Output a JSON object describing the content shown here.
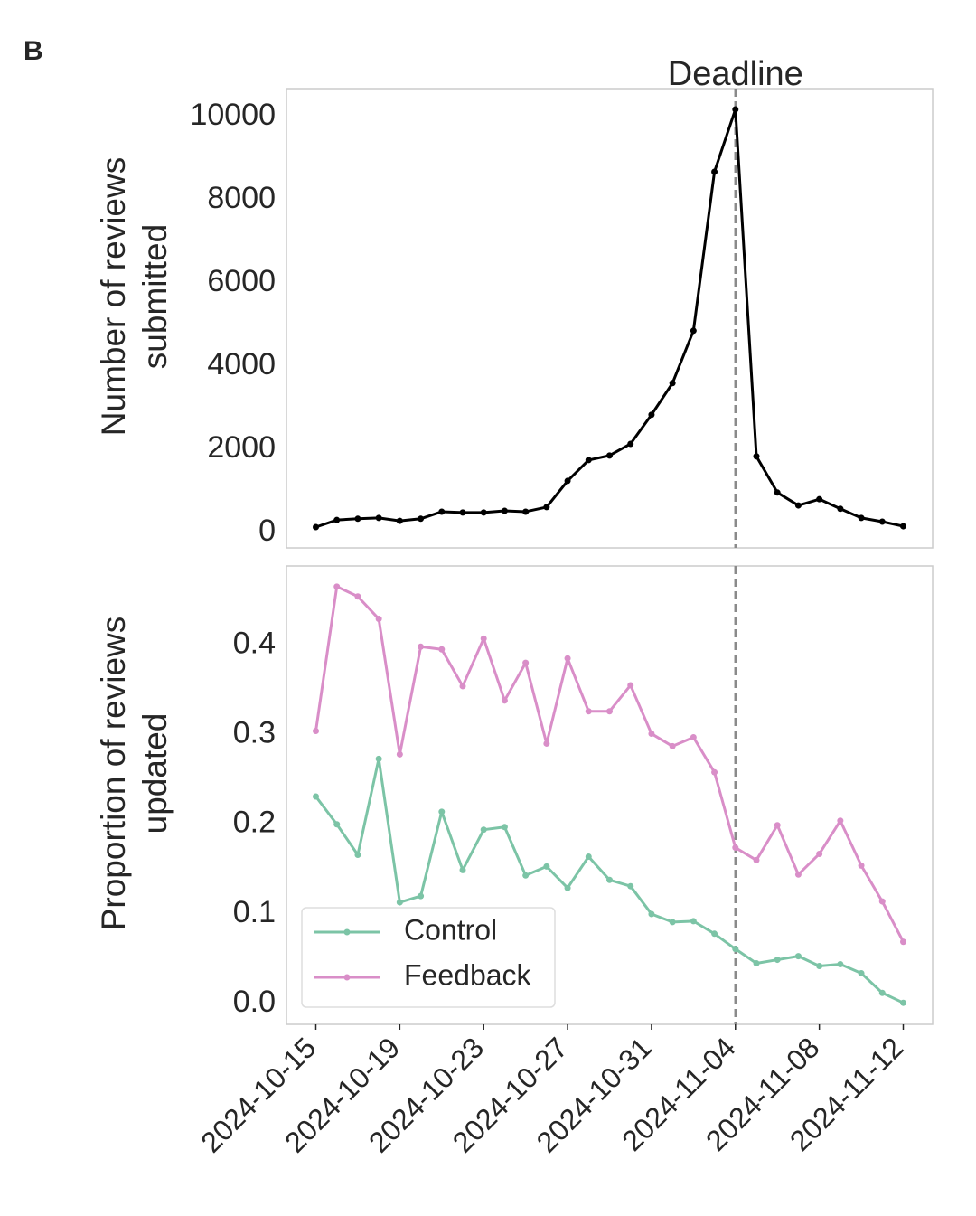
{
  "panel_label": "B",
  "chart_data": [
    {
      "type": "line",
      "ylabel": [
        "Number of reviews",
        "submitted"
      ],
      "vline": "2024-11-04",
      "vline_label": "Deadline",
      "x": [
        "2024-10-15",
        "2024-10-16",
        "2024-10-17",
        "2024-10-18",
        "2024-10-19",
        "2024-10-20",
        "2024-10-21",
        "2024-10-22",
        "2024-10-23",
        "2024-10-24",
        "2024-10-25",
        "2024-10-26",
        "2024-10-27",
        "2024-10-28",
        "2024-10-29",
        "2024-10-30",
        "2024-10-31",
        "2024-11-01",
        "2024-11-02",
        "2024-11-03",
        "2024-11-04",
        "2024-11-05",
        "2024-11-06",
        "2024-11-07",
        "2024-11-08",
        "2024-11-09",
        "2024-11-10",
        "2024-11-11",
        "2024-11-12"
      ],
      "xlim": [
        "2024-10-13T14:24:00Z",
        "2024-11-13T09:36:00Z"
      ],
      "series": [
        {
          "color": "#000000",
          "values": [
            130,
            300,
            330,
            350,
            280,
            330,
            500,
            480,
            480,
            520,
            500,
            610,
            1240,
            1740,
            1850,
            2130,
            2830,
            3590,
            4850,
            8670,
            10170,
            1830,
            960,
            650,
            800,
            570,
            350,
            260,
            150
          ]
        }
      ],
      "ylim": [
        -370,
        10670
      ],
      "yticks": [
        0,
        2000,
        4000,
        6000,
        8000,
        10000
      ],
      "grid": false
    },
    {
      "type": "line",
      "ylabel": [
        "Proportion of reviews",
        "updated"
      ],
      "vline": "2024-11-04",
      "x": [
        "2024-10-15",
        "2024-10-16",
        "2024-10-17",
        "2024-10-18",
        "2024-10-19",
        "2024-10-20",
        "2024-10-21",
        "2024-10-22",
        "2024-10-23",
        "2024-10-24",
        "2024-10-25",
        "2024-10-26",
        "2024-10-27",
        "2024-10-28",
        "2024-10-29",
        "2024-10-30",
        "2024-10-31",
        "2024-11-01",
        "2024-11-02",
        "2024-11-03",
        "2024-11-04",
        "2024-11-05",
        "2024-11-06",
        "2024-11-07",
        "2024-11-08",
        "2024-11-09",
        "2024-11-10",
        "2024-11-11",
        "2024-11-12"
      ],
      "xlim": [
        "2024-10-13T14:24:00Z",
        "2024-11-13T09:36:00Z"
      ],
      "xticks": [
        "2024-10-15",
        "2024-10-19",
        "2024-10-23",
        "2024-10-27",
        "2024-10-31",
        "2024-11-04",
        "2024-11-08",
        "2024-11-12"
      ],
      "series": [
        {
          "name": "Control",
          "color": "#7cc4a6",
          "values": [
            0.231,
            0.2,
            0.166,
            0.273,
            0.113,
            0.12,
            0.214,
            0.149,
            0.194,
            0.197,
            0.143,
            0.153,
            0.129,
            0.164,
            0.138,
            0.131,
            0.1,
            0.091,
            0.092,
            0.078,
            0.061,
            0.045,
            0.049,
            0.053,
            0.042,
            0.044,
            0.034,
            0.012,
            0.001
          ]
        },
        {
          "name": "Feedback",
          "color": "#d98ec8",
          "values": [
            0.304,
            0.465,
            0.454,
            0.429,
            0.278,
            0.398,
            0.395,
            0.354,
            0.407,
            0.338,
            0.38,
            0.29,
            0.385,
            0.326,
            0.326,
            0.355,
            0.301,
            0.287,
            0.297,
            0.258,
            0.174,
            0.16,
            0.199,
            0.144,
            0.167,
            0.204,
            0.154,
            0.114,
            0.069
          ]
        }
      ],
      "ylim": [
        -0.023,
        0.488
      ],
      "yticks": [
        {
          "value": 0,
          "label": "0.0"
        },
        0.1,
        0.2,
        0.3,
        0.4
      ],
      "legend": "lower left",
      "grid": false
    }
  ]
}
